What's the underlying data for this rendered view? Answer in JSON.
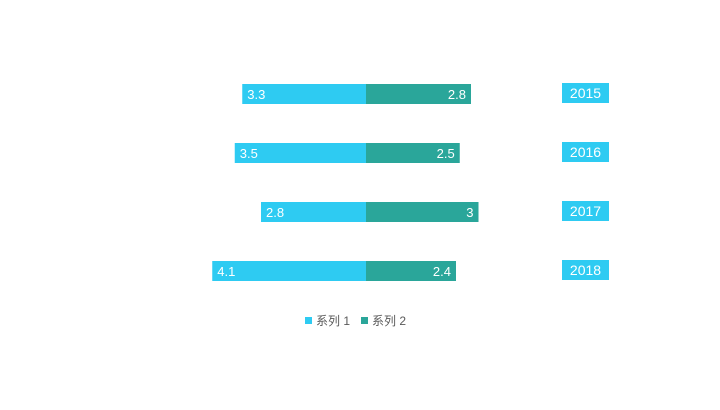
{
  "chart_data": {
    "type": "bar",
    "orientation": "horizontal-diverging",
    "categories": [
      "2015",
      "2016",
      "2017",
      "2018"
    ],
    "series": [
      {
        "name": "系列 1",
        "values": [
          3.3,
          3.5,
          2.8,
          4.1
        ],
        "color": "#2ecbf2",
        "direction": "left"
      },
      {
        "name": "系列 2",
        "values": [
          2.8,
          2.5,
          3.0,
          2.4
        ],
        "color": "#2aa69a",
        "direction": "right"
      }
    ],
    "data_labels": [
      [
        "3.3",
        "3.5",
        "2.8",
        "4.1"
      ],
      [
        "2.8",
        "2.5",
        "3",
        "2.4"
      ]
    ],
    "category_label_color": "#2ecbf2",
    "legend_position": "bottom",
    "grid": false
  }
}
